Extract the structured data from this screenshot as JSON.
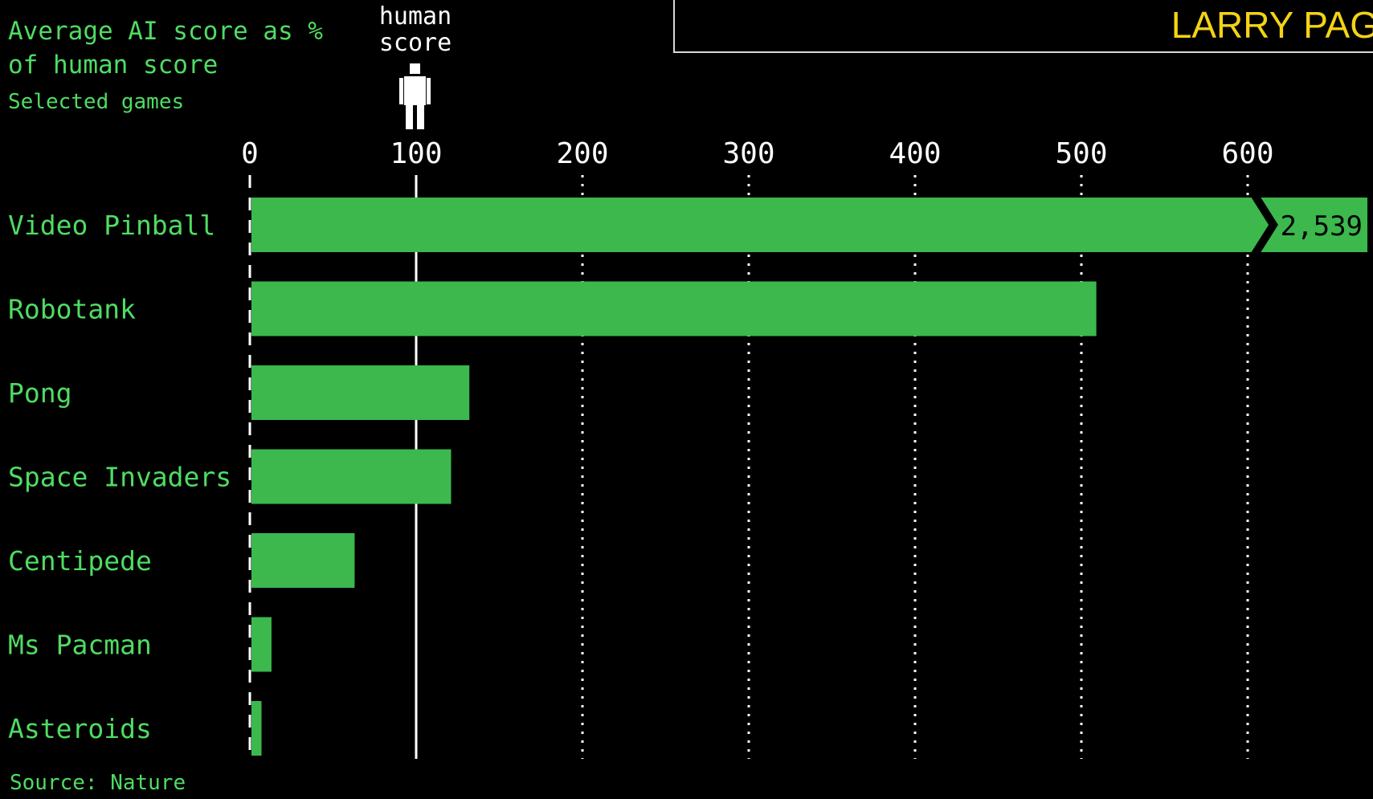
{
  "header": {
    "title": "Average AI score as % of human score",
    "subtitle": "Selected games",
    "source": "Source: Nature",
    "banner": "LARRY PAG"
  },
  "reference": {
    "label": "human score",
    "value": 100,
    "icon": "human-figure-icon"
  },
  "colors": {
    "bar": "#3cb84d",
    "label": "#4fdc62",
    "background": "#000000",
    "banner_text": "#f4d315"
  },
  "chart_data": {
    "type": "bar",
    "orientation": "horizontal",
    "title": "Average AI score as % of human score",
    "subtitle": "Selected games",
    "categories": [
      "Video Pinball",
      "Robotank",
      "Pong",
      "Space Invaders",
      "Centipede",
      "Ms Pacman",
      "Asteroids"
    ],
    "values": [
      2539,
      509,
      132,
      121,
      63,
      13,
      7
    ],
    "data_labels": [
      "2,539",
      "",
      "",
      "",
      "",
      "",
      ""
    ],
    "xlim": [
      0,
      672
    ],
    "x_ticks": [
      0,
      100,
      200,
      300,
      400,
      500,
      600
    ],
    "x_tick_labels": [
      "0",
      "100",
      "200",
      "300",
      "400",
      "500",
      "600"
    ],
    "axis_break_after": 600,
    "grid": "vertical-dotted",
    "reference_line": 100
  }
}
